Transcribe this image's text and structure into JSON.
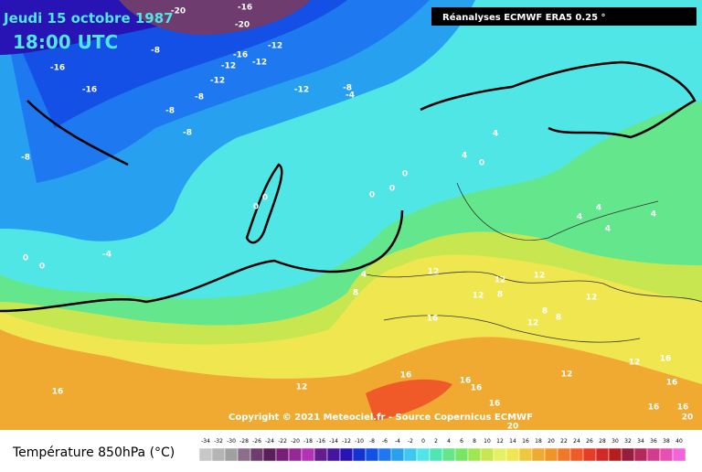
{
  "map": {
    "title": "Jeudi 15 octobre 1987",
    "time": "18:00 UTC",
    "source": "Réanalyses ECMWF ERA5 0.25 °",
    "copyright": "Copyright © 2021 Meteociel.fr - Source Copernicus ECMWF",
    "legend": {
      "title": "Température 850hPa (°C)",
      "ticks": [
        -34,
        -32,
        -30,
        -28,
        -26,
        -24,
        -22,
        -20,
        -18,
        -16,
        -14,
        -12,
        -10,
        -8,
        -6,
        -4,
        -2,
        0,
        2,
        4,
        6,
        8,
        10,
        12,
        14,
        16,
        18,
        20,
        22,
        24,
        26,
        28,
        30,
        32,
        34,
        36,
        38,
        40
      ],
      "colors": [
        "#c8c8c8",
        "#b4b4b4",
        "#a0a0a0",
        "#8c6e8c",
        "#6e3c6e",
        "#5a1e5a",
        "#781e78",
        "#962896",
        "#b432b4",
        "#641e8c",
        "#4614a0",
        "#2814b4",
        "#1432d2",
        "#1450e6",
        "#1e78f0",
        "#28a0f0",
        "#3cc8f0",
        "#50e6e6",
        "#50e6b4",
        "#64e68c",
        "#78e664",
        "#a0e650",
        "#c8e650",
        "#e6f064",
        "#f0e650",
        "#f0c83c",
        "#f0aa32",
        "#f09628",
        "#f07828",
        "#f05a28",
        "#e63c28",
        "#d22828",
        "#b41e1e",
        "#961e3c",
        "#b4285a",
        "#d23c8c",
        "#e650b4",
        "#f064dc"
      ]
    },
    "contour_labels": [
      -20,
      -16,
      -20,
      -12,
      -8,
      -16,
      -12,
      -12,
      -16,
      -12,
      -16,
      -12,
      -8,
      -4,
      -8,
      -8,
      -8,
      -8,
      4,
      4,
      0,
      0,
      0,
      0,
      0,
      0,
      4,
      4,
      4,
      4,
      -4,
      0,
      0,
      4,
      8,
      12,
      12,
      12,
      8,
      12,
      12,
      8,
      8,
      16,
      12,
      12,
      16,
      16,
      16,
      16,
      12,
      16,
      16,
      16,
      16,
      20,
      20,
      16,
      12
    ]
  }
}
